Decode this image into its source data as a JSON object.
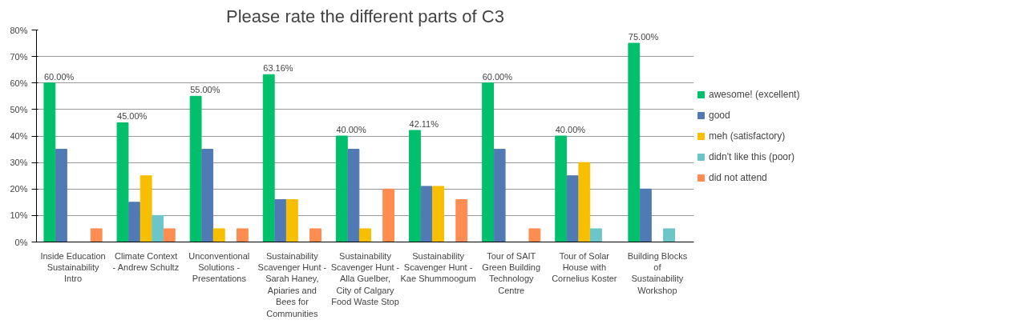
{
  "chart_data": {
    "type": "bar",
    "title": "Please rate the different parts of C3",
    "categories": [
      "Inside Education Sustainability Intro",
      "Climate Context - Andrew Schultz",
      "Unconventional Solutions - Presentations",
      "Sustainability Scavenger Hunt - Sarah Haney, Apiaries and Bees for Communities",
      "Sustainability Scavenger Hunt - Alla Guelber,  City of Calgary Food Waste Stop",
      "Sustainability Scavenger Hunt - Kae Shummoogum",
      "Tour of SAIT Green Building Technology Centre",
      "Tour of Solar House with Cornelius Koster",
      "Building Blocks of Sustainability Workshop"
    ],
    "series": [
      {
        "name": "awesome! (excellent)",
        "color": "#00c06b",
        "values": [
          60,
          45,
          55,
          63.16,
          40,
          42.11,
          60,
          40,
          75
        ],
        "value_labels": [
          "60.00%",
          "45.00%",
          "55.00%",
          "63.16%",
          "40.00%",
          "42.11%",
          "60.00%",
          "40.00%",
          "75.00%"
        ]
      },
      {
        "name": "good",
        "color": "#4f7ab3",
        "values": [
          35,
          15,
          35,
          16,
          35,
          21,
          35,
          25,
          20
        ]
      },
      {
        "name": "meh (satisfactory)",
        "color": "#f8bf00",
        "values": [
          0,
          25,
          5,
          16,
          5,
          21,
          0,
          30,
          0
        ]
      },
      {
        "name": "didn't like this (poor)",
        "color": "#6cc5c8",
        "values": [
          0,
          10,
          0,
          0,
          0,
          0,
          0,
          5,
          5
        ]
      },
      {
        "name": "did not attend",
        "color": "#ff8c50",
        "values": [
          5,
          5,
          5,
          5,
          20,
          16,
          5,
          0,
          0
        ]
      }
    ],
    "ylim": [
      0,
      80
    ],
    "yticks": [
      {
        "value": 0,
        "label": "0%"
      },
      {
        "value": 10,
        "label": "10%"
      },
      {
        "value": 20,
        "label": "20%"
      },
      {
        "value": 30,
        "label": "30%"
      },
      {
        "value": 40,
        "label": "40%"
      },
      {
        "value": 50,
        "label": "50%"
      },
      {
        "value": 60,
        "label": "60%"
      },
      {
        "value": 70,
        "label": "70%"
      },
      {
        "value": 80,
        "label": "80%"
      }
    ],
    "grid": "y",
    "legend": "right"
  }
}
